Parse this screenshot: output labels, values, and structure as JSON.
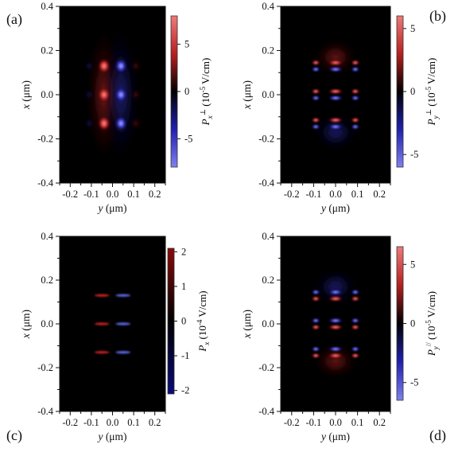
{
  "chart_data": [
    {
      "type": "heatmap",
      "panel_label": "(a)",
      "xlabel": "y (μm)",
      "ylabel": "x (μm)",
      "xlim": [
        -0.25,
        0.25
      ],
      "ylim": [
        -0.4,
        0.4
      ],
      "x_ticks": [
        "-0.2",
        "-0.1",
        "0.0",
        "0.1",
        "0.2"
      ],
      "y_ticks": [
        "0.4",
        "0.2",
        "0.0",
        "-0.2",
        "-0.4"
      ],
      "colorbar": {
        "label_main": "P",
        "label_sub": "x",
        "label_sup": "⊥",
        "label_unit": " (10",
        "label_exp": "-5",
        "label_tail": " V/cm)",
        "range": [
          -8,
          8
        ],
        "ticks": [
          "5",
          "0",
          "-5"
        ],
        "tick_values": [
          5,
          0,
          -5
        ],
        "colormap": "light-red-black-light-blue"
      },
      "features": "3×2 array of lobes: red column at y≈-0.04 μm, blue column at y≈+0.04 μm, rows at x≈0.13, 0.0, -0.13 μm"
    },
    {
      "type": "heatmap",
      "panel_label": "(b)",
      "xlabel": "y (μm)",
      "ylabel": "x (μm)",
      "xlim": [
        -0.25,
        0.25
      ],
      "ylim": [
        -0.4,
        0.4
      ],
      "x_ticks": [
        "-0.2",
        "-0.1",
        "0.0",
        "0.1",
        "0.2"
      ],
      "y_ticks": [
        "0.4",
        "0.2",
        "0.0",
        "-0.2",
        "-0.4"
      ],
      "colorbar": {
        "label_main": "P",
        "label_sub": "y",
        "label_sup": "⊥",
        "label_unit": " (10",
        "label_exp": "-5",
        "label_tail": " V/cm)",
        "range": [
          -6,
          6
        ],
        "ticks": [
          "5",
          "0",
          "-5"
        ],
        "tick_values": [
          5,
          0,
          -5
        ],
        "colormap": "light-red-black-light-blue"
      },
      "features": "three horizontal bands at x≈0.13, 0.0, -0.13 μm with red/blue stripes"
    },
    {
      "type": "heatmap",
      "panel_label": "(c)",
      "xlabel": "y (μm)",
      "ylabel": "x (μm)",
      "xlim": [
        -0.25,
        0.25
      ],
      "ylim": [
        -0.4,
        0.4
      ],
      "x_ticks": [
        "-0.2",
        "-0.1",
        "0.0",
        "0.1",
        "0.2"
      ],
      "y_ticks": [
        "0.4",
        "0.2",
        "0.0",
        "-0.2",
        "-0.4"
      ],
      "colorbar": {
        "label_main": "P",
        "label_sub": "x",
        "label_sup": "",
        "label_unit": " (10",
        "label_exp": "-4",
        "label_tail": " V/cm)",
        "range": [
          -2.1,
          2.1
        ],
        "ticks": [
          "2",
          "1",
          "0",
          "-1",
          "-2"
        ],
        "tick_values": [
          2,
          1,
          0,
          -1,
          -2
        ],
        "colormap": "dark-red-black-dark-blue"
      },
      "features": "thin streaks at x≈0.13, 0.0, -0.13 μm: red at y≈-0.05, blue at y≈+0.05"
    },
    {
      "type": "heatmap",
      "panel_label": "(d)",
      "xlabel": "y (μm)",
      "ylabel": "x (μm)",
      "xlim": [
        -0.25,
        0.25
      ],
      "ylim": [
        -0.4,
        0.4
      ],
      "x_ticks": [
        "-0.2",
        "-0.1",
        "0.0",
        "0.1",
        "0.2"
      ],
      "y_ticks": [
        "0.4",
        "0.2",
        "0.0",
        "-0.2",
        "-0.4"
      ],
      "colorbar": {
        "label_main": "P",
        "label_sub": "y",
        "label_sup": "//",
        "label_unit": " (10",
        "label_exp": "-5",
        "label_tail": " V/cm)",
        "range": [
          -6.5,
          6.5
        ],
        "ticks": [
          "5",
          "0",
          "-5"
        ],
        "tick_values": [
          5,
          0,
          -5
        ],
        "colormap": "light-red-black-light-blue"
      },
      "features": "three horizontal bands similar to (b) with opposite sign, blue cap above, red below"
    }
  ]
}
